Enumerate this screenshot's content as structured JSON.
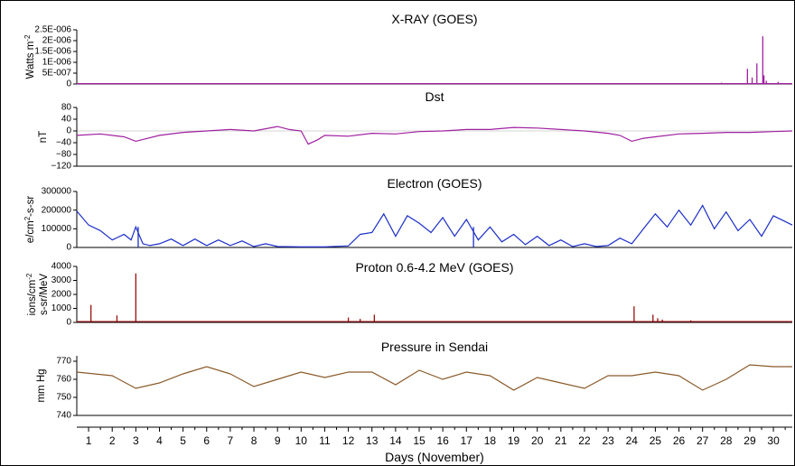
{
  "chart_data": {
    "xlabel": "Days (November)",
    "x_ticks": [
      "1",
      "2",
      "3",
      "4",
      "5",
      "6",
      "7",
      "8",
      "9",
      "10",
      "11",
      "12",
      "13",
      "14",
      "15",
      "16",
      "17",
      "18",
      "19",
      "20",
      "21",
      "22",
      "23",
      "24",
      "25",
      "26",
      "27",
      "28",
      "29",
      "30"
    ],
    "xlim": [
      0.5,
      30.8
    ],
    "panels": [
      {
        "id": "xray",
        "type": "line",
        "title": "X-RAY (GOES)",
        "ylabel": "Watts m",
        "ylabel_sup": "-2",
        "yticks": [
          "2.5E-006",
          "2E-006",
          "1.5E-006",
          "1E-006",
          "5E-007",
          "0"
        ],
        "ytick_values": [
          2.5e-06,
          2e-06,
          1.5e-06,
          1e-06,
          5e-07,
          0
        ],
        "ylim": [
          0,
          2.5e-06
        ],
        "color": "#a020a0",
        "baseline": 1.5e-08,
        "spikes": [
          [
            27.8,
            6e-08
          ],
          [
            28.9,
            7e-07
          ],
          [
            29.1,
            3e-07
          ],
          [
            29.3,
            9.5e-07
          ],
          [
            29.55,
            2.2e-06
          ],
          [
            29.6,
            4e-07
          ],
          [
            29.7,
            1.5e-07
          ],
          [
            30.2,
            1e-07
          ]
        ]
      },
      {
        "id": "dst",
        "type": "line",
        "title": "Dst",
        "ylabel": "nT",
        "yticks": [
          "80",
          "40",
          "0",
          "−40",
          "−80",
          "−120"
        ],
        "ytick_values": [
          80,
          40,
          0,
          -40,
          -80,
          -120
        ],
        "ylim": [
          -120,
          80
        ],
        "color": "#a020a0",
        "grid_at": 0,
        "x": [
          0.5,
          1.5,
          2.5,
          3,
          4,
          5,
          6,
          7,
          8,
          9,
          9.5,
          10,
          10.3,
          10.7,
          11,
          12,
          13,
          14,
          15,
          16,
          17,
          18,
          19,
          20,
          21,
          22,
          23,
          23.5,
          24,
          24.5,
          25,
          26,
          27,
          28,
          29,
          30,
          30.8
        ],
        "y": [
          -15,
          -10,
          -20,
          -35,
          -15,
          -5,
          0,
          5,
          0,
          15,
          5,
          0,
          -45,
          -30,
          -15,
          -18,
          -8,
          -10,
          -2,
          0,
          5,
          5,
          12,
          10,
          5,
          0,
          -8,
          -15,
          -35,
          -25,
          -20,
          -10,
          -8,
          -5,
          -5,
          -2,
          0
        ]
      },
      {
        "id": "electron",
        "type": "line",
        "title": "Electron (GOES)",
        "ylabel": "e/cm",
        "ylabel_sup": "2",
        "ylabel_tail": "-s-sr",
        "yticks": [
          "300000",
          "200000",
          "100000",
          "0"
        ],
        "ytick_values": [
          300000,
          200000,
          100000,
          0
        ],
        "ylim": [
          0,
          300000
        ],
        "color": "#1c2ec8",
        "x": [
          0.5,
          1,
          1.5,
          2,
          2.5,
          2.8,
          3,
          3.3,
          3.6,
          4,
          4.5,
          5,
          5.5,
          6,
          6.5,
          7,
          7.5,
          8,
          8.5,
          9,
          10,
          11,
          12,
          12.5,
          13,
          13.5,
          14,
          14.5,
          15,
          15.5,
          16,
          16.5,
          17,
          17.5,
          18,
          18.5,
          19,
          19.5,
          20,
          20.5,
          21,
          21.5,
          22,
          22.5,
          23,
          23.5,
          24,
          24.5,
          25,
          25.5,
          26,
          26.5,
          27,
          27.5,
          28,
          28.5,
          29,
          29.5,
          30,
          30.8
        ],
        "y": [
          195000,
          120000,
          90000,
          40000,
          70000,
          40000,
          110000,
          20000,
          10000,
          20000,
          45000,
          10000,
          45000,
          10000,
          40000,
          10000,
          35000,
          5000,
          20000,
          5000,
          3000,
          3000,
          8000,
          70000,
          80000,
          180000,
          60000,
          170000,
          130000,
          80000,
          160000,
          60000,
          150000,
          40000,
          110000,
          30000,
          70000,
          15000,
          60000,
          10000,
          40000,
          5000,
          20000,
          5000,
          10000,
          50000,
          20000,
          100000,
          180000,
          110000,
          200000,
          120000,
          225000,
          100000,
          190000,
          90000,
          150000,
          60000,
          170000,
          120000
        ],
        "spikes": [
          [
            3.1,
            110000
          ],
          [
            17.3,
            110000
          ]
        ]
      },
      {
        "id": "proton",
        "type": "line",
        "title": "Proton 0.6-4.2 MeV (GOES)",
        "ylabel": "ions/cm",
        "ylabel_sup": "-2",
        "ylabel_line2": "s-sr/MeV",
        "yticks": [
          "4000",
          "3000",
          "2000",
          "1000",
          "0"
        ],
        "ytick_values": [
          4000,
          3000,
          2000,
          1000,
          0
        ],
        "ylim": [
          0,
          4000
        ],
        "color": "#9a1010",
        "baseline": 60,
        "spikes": [
          [
            1.1,
            1250
          ],
          [
            2.2,
            500
          ],
          [
            3.0,
            3500
          ],
          [
            12.0,
            350
          ],
          [
            12.5,
            250
          ],
          [
            13.1,
            550
          ],
          [
            24.1,
            1150
          ],
          [
            24.9,
            550
          ],
          [
            25.1,
            300
          ],
          [
            25.3,
            200
          ],
          [
            26.5,
            150
          ]
        ]
      },
      {
        "id": "pressure",
        "type": "line",
        "title": "Pressure in Sendai",
        "ylabel": "mm Hg",
        "yticks": [
          "770",
          "760",
          "750",
          "740"
        ],
        "ytick_values": [
          770,
          760,
          750,
          740
        ],
        "ylim": [
          740,
          773
        ],
        "grid_at": 740,
        "color": "#8a5a2a",
        "x": [
          0.5,
          2,
          3,
          4,
          5,
          6,
          7,
          8,
          9,
          10,
          11,
          12,
          13,
          14,
          15,
          16,
          17,
          18,
          19,
          20,
          21,
          22,
          23,
          24,
          25,
          26,
          27,
          28,
          29,
          30,
          30.8
        ],
        "y": [
          764,
          762,
          755,
          758,
          763,
          767,
          763,
          756,
          760,
          764,
          761,
          764,
          764,
          757,
          765,
          760,
          764,
          762,
          754,
          761,
          758,
          755,
          762,
          762,
          764,
          762,
          754,
          760,
          768,
          767,
          767
        ]
      }
    ]
  }
}
